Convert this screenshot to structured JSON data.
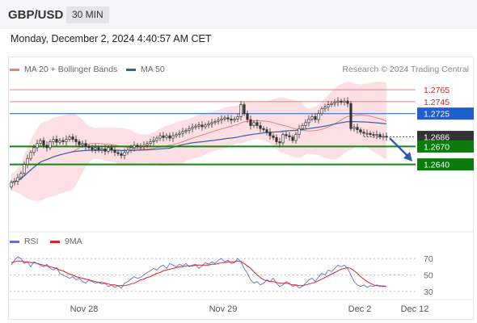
{
  "header": {
    "symbol": "GBP/USD",
    "timeframe": "30 MIN",
    "timestamp": "Monday, December 2, 2024 4:40:57 AM CET"
  },
  "legend": {
    "ma20": "MA 20 + Bollinger Bands",
    "ma50": "MA 50",
    "credit": "Research © 2024 Trading Central",
    "rsi": "RSI",
    "rsi_ma": "9MA"
  },
  "colors": {
    "ma20": "#e88080",
    "ma50": "#3a5fa8",
    "bands": "#fbd9dd",
    "up_candle": "#ffffff",
    "down_candle": "#333333",
    "resistance": "#e88080",
    "pivot": "#3a6fd0",
    "support": "#118811",
    "arrow": "#2d5aa0",
    "rsi": "#6070d0",
    "rsi_ma": "#dd2020"
  },
  "chart_data": [
    {
      "type": "candlestick",
      "title": "GBP/USD 30 MIN",
      "x_ticks": [
        "Nov 28",
        "Nov 29",
        "Dec 2",
        "Dec 12"
      ],
      "ylim": [
        1.253,
        1.278
      ],
      "current_price": "1.2686",
      "levels": [
        {
          "label": "1.2765",
          "value": 1.2765,
          "kind": "resistance"
        },
        {
          "label": "1.2745",
          "value": 1.2745,
          "kind": "resistance"
        },
        {
          "label": "1.2725",
          "value": 1.2725,
          "kind": "pivot"
        },
        {
          "label": "1.2686",
          "value": 1.2686,
          "kind": "current"
        },
        {
          "label": "1.2670",
          "value": 1.267,
          "kind": "support"
        },
        {
          "label": "1.2640",
          "value": 1.264,
          "kind": "support"
        }
      ],
      "close": [
        1.261,
        1.2612,
        1.2618,
        1.2625,
        1.264,
        1.265,
        1.266,
        1.2668,
        1.2675,
        1.268,
        1.2672,
        1.2668,
        1.2678,
        1.2682,
        1.2677,
        1.268,
        1.2678,
        1.2682,
        1.2686,
        1.2682,
        1.2678,
        1.2673,
        1.2675,
        1.267,
        1.2668,
        1.2665,
        1.2668,
        1.2664,
        1.2666,
        1.2662,
        1.2668,
        1.2664,
        1.266,
        1.2658,
        1.2655,
        1.266,
        1.2664,
        1.2668,
        1.2672,
        1.267,
        1.267,
        1.2672,
        1.2675,
        1.2678,
        1.268,
        1.2684,
        1.2688,
        1.2685,
        1.2688,
        1.2684,
        1.2688,
        1.269,
        1.2692,
        1.2695,
        1.2697,
        1.27,
        1.2702,
        1.2704,
        1.2706,
        1.2703,
        1.2706,
        1.2708,
        1.271,
        1.2712,
        1.2714,
        1.2716,
        1.2718,
        1.2716,
        1.2714,
        1.2716,
        1.272,
        1.274,
        1.2725,
        1.2715,
        1.2705,
        1.271,
        1.2705,
        1.27,
        1.2698,
        1.2694,
        1.2688,
        1.2685,
        1.2678,
        1.2676,
        1.269,
        1.2688,
        1.2686,
        1.268,
        1.269,
        1.27,
        1.2705,
        1.271,
        1.2716,
        1.272,
        1.2715,
        1.2725,
        1.2733,
        1.2736,
        1.274,
        1.2742,
        1.2744,
        1.2746,
        1.2744,
        1.2746,
        1.2742,
        1.27,
        1.2702,
        1.2698,
        1.2694,
        1.2692,
        1.2692,
        1.269,
        1.2689,
        1.269,
        1.2686,
        1.2687,
        1.2686
      ]
    },
    {
      "type": "line",
      "title": "RSI",
      "y_ticks": [
        70,
        50,
        30
      ],
      "ylim": [
        25,
        78
      ],
      "series": [
        {
          "name": "RSI",
          "values": [
            62,
            68,
            72,
            70,
            64,
            66,
            60,
            66,
            64,
            62,
            60,
            63,
            58,
            56,
            59,
            52,
            50,
            48,
            46,
            48,
            44,
            46,
            42,
            40,
            44,
            42,
            40,
            41,
            39,
            40,
            36,
            38,
            35,
            37,
            34,
            40,
            42,
            45,
            48,
            46,
            47,
            50,
            53,
            55,
            58,
            56,
            60,
            62,
            58,
            64,
            62,
            60,
            63,
            61,
            64,
            60,
            62,
            63,
            58,
            61,
            65,
            63,
            66,
            64,
            68,
            70,
            66,
            68,
            64,
            65,
            70,
            66,
            58,
            52,
            44,
            40,
            42,
            38,
            40,
            44,
            42,
            46,
            40,
            36,
            38,
            42,
            40,
            36,
            38,
            34,
            36,
            40,
            44,
            46,
            42,
            48,
            52,
            50,
            56,
            54,
            58,
            62,
            60,
            62,
            58,
            50,
            42,
            38,
            36,
            38,
            35,
            37,
            36,
            38,
            36,
            37,
            36
          ]
        },
        {
          "name": "9MA",
          "values": [
            65,
            66,
            67,
            67,
            66,
            66,
            65,
            65,
            64,
            63,
            62,
            61,
            60,
            59,
            58,
            56,
            55,
            53,
            51,
            50,
            48,
            47,
            46,
            45,
            44,
            43,
            42,
            41,
            41,
            40,
            39,
            38,
            38,
            37,
            37,
            37,
            38,
            39,
            40,
            42,
            44,
            45,
            47,
            48,
            50,
            52,
            53,
            55,
            56,
            57,
            58,
            59,
            60,
            60,
            61,
            61,
            61,
            62,
            62,
            62,
            62,
            62,
            63,
            63,
            64,
            65,
            65,
            66,
            66,
            66,
            67,
            66,
            64,
            61,
            58,
            54,
            50,
            47,
            44,
            43,
            42,
            42,
            41,
            40,
            40,
            40,
            39,
            38,
            38,
            37,
            37,
            38,
            39,
            40,
            41,
            43,
            45,
            47,
            49,
            51,
            53,
            55,
            57,
            58,
            59,
            58,
            55,
            52,
            48,
            45,
            42,
            40,
            38,
            37,
            37,
            36,
            36
          ]
        }
      ]
    }
  ]
}
